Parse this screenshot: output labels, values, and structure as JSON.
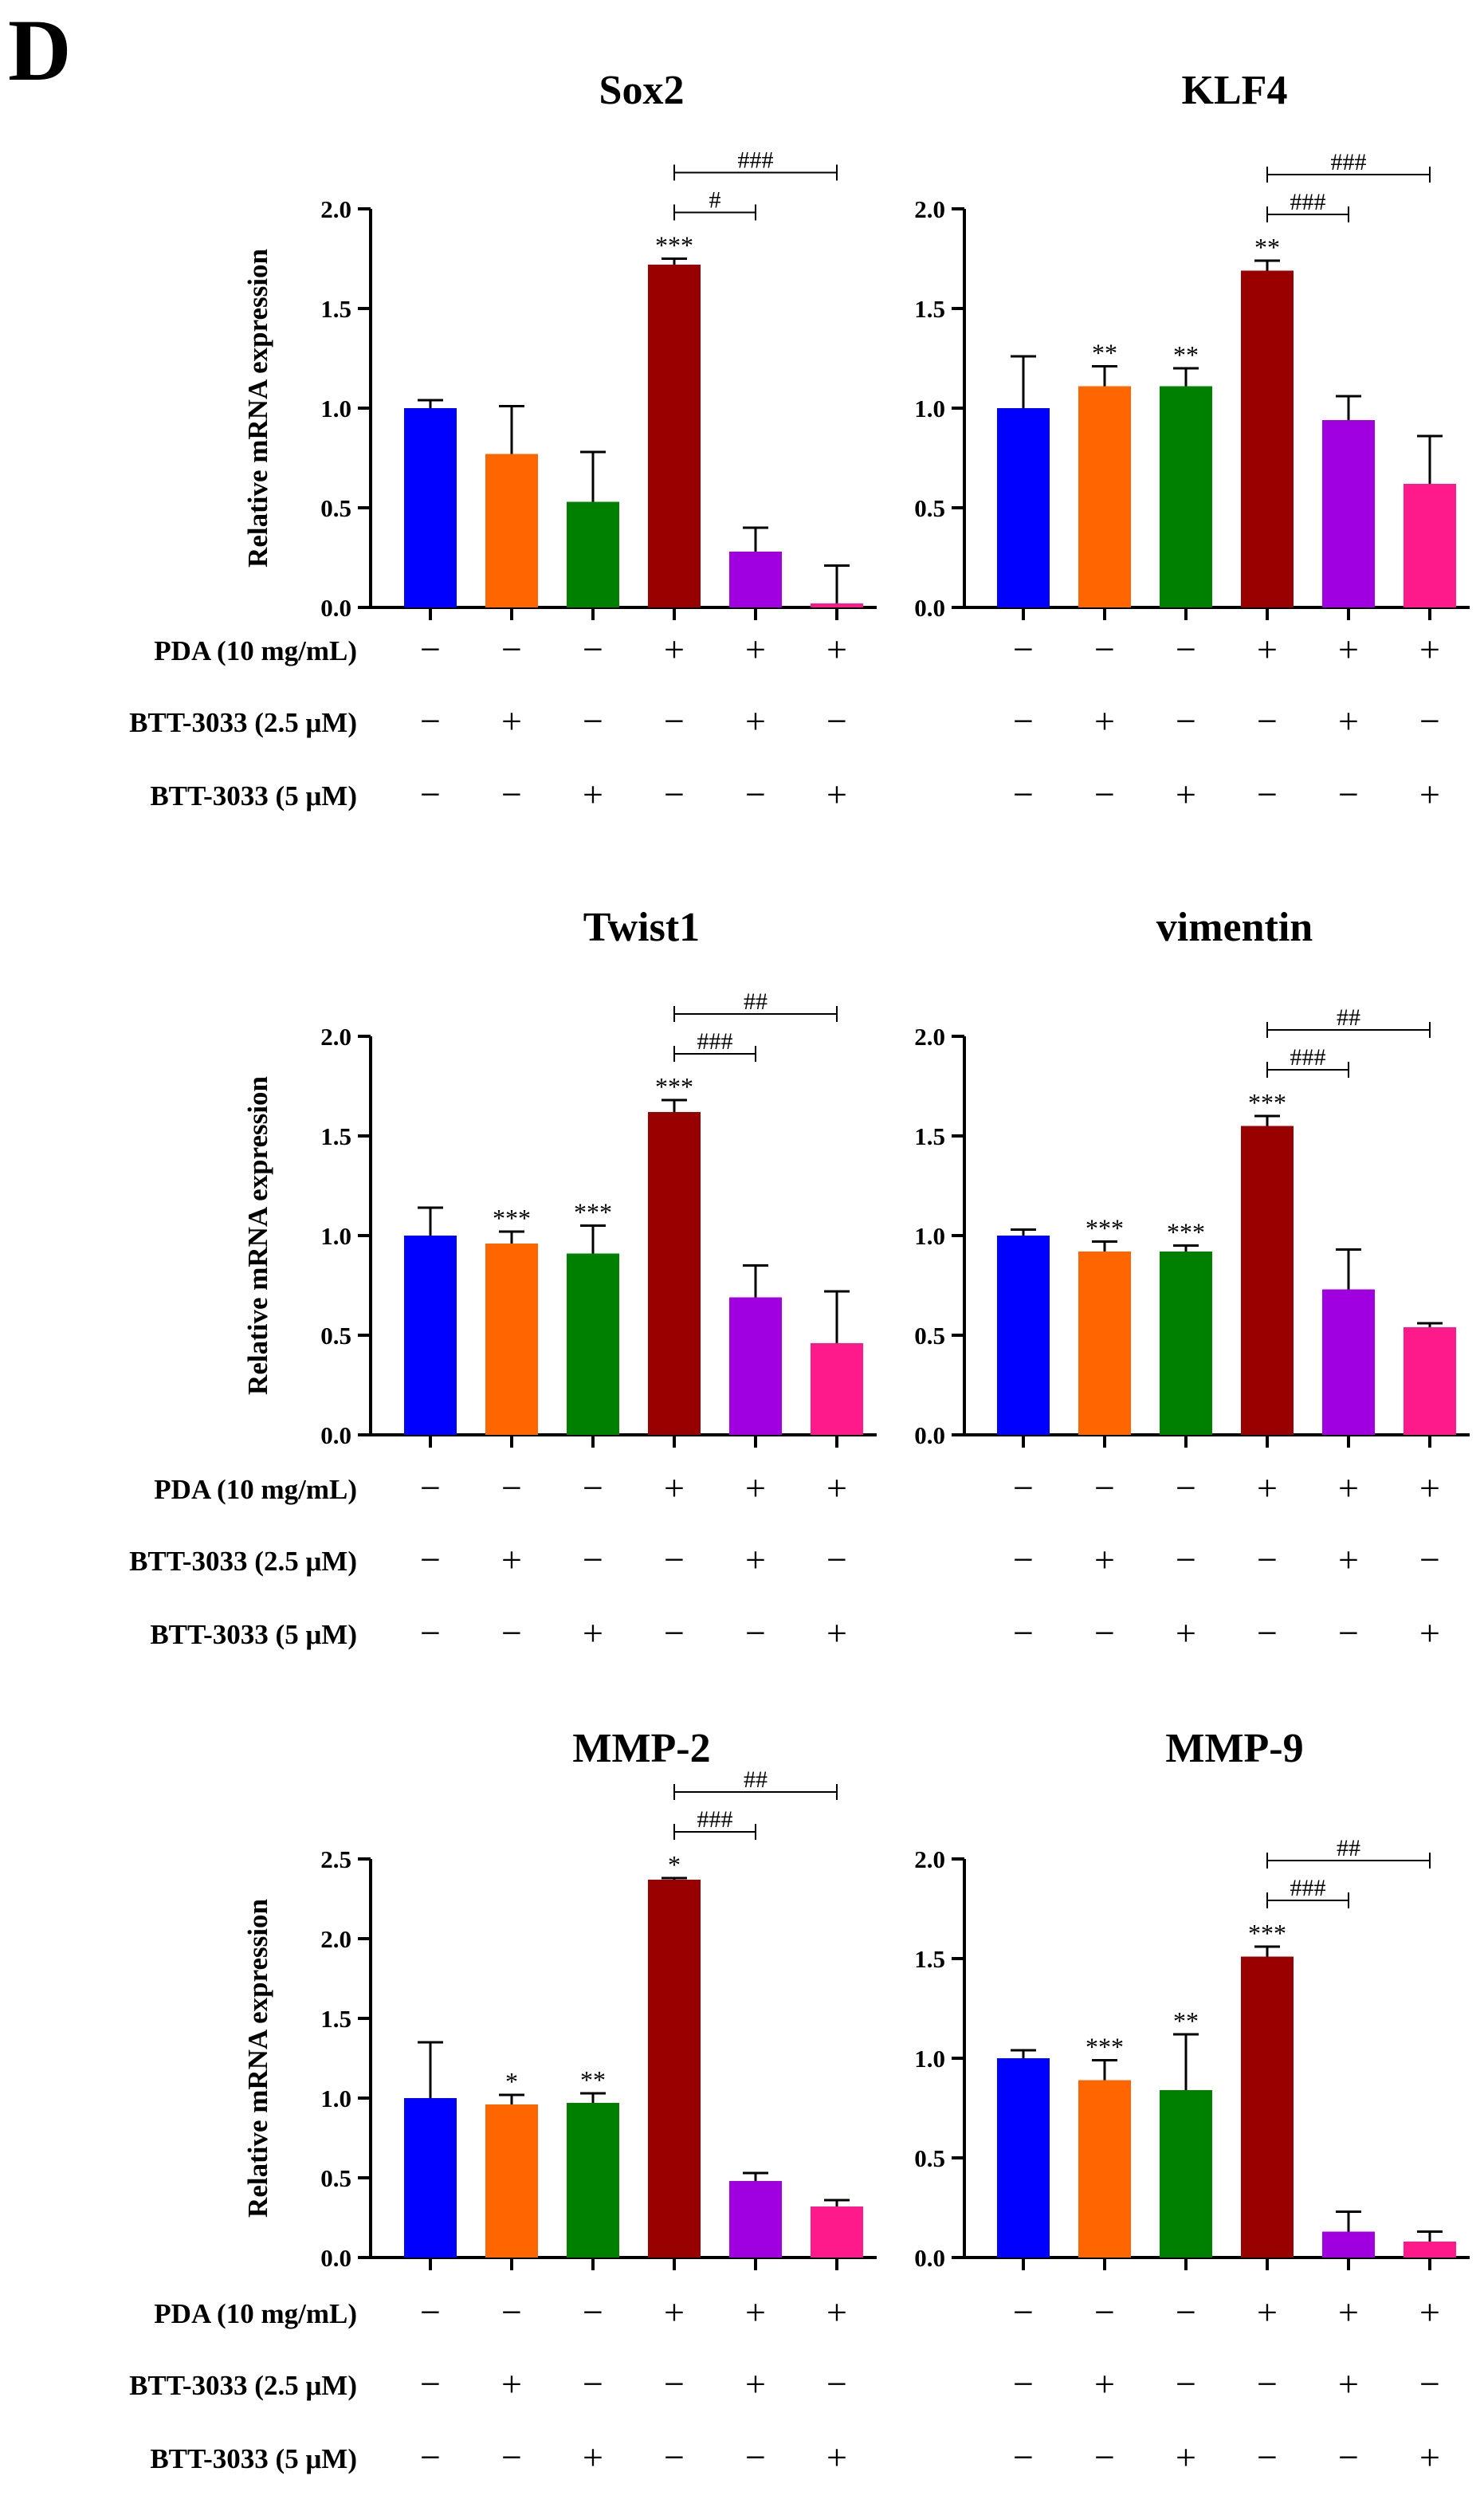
{
  "figure": {
    "panel_label": "D",
    "y_axis_label": "Relative mRNA expression",
    "condition_rows": [
      {
        "label": "PDA (10 mg/mL)",
        "signs": [
          "−",
          "−",
          "−",
          "+",
          "+",
          "+"
        ]
      },
      {
        "label": "BTT-3033 (2.5 μM)",
        "signs": [
          "−",
          "+",
          "−",
          "−",
          "+",
          "−"
        ]
      },
      {
        "label": "BTT-3033 (5 μM)",
        "signs": [
          "−",
          "−",
          "+",
          "−",
          "−",
          "+"
        ]
      }
    ],
    "bar_colors": [
      "#0000ff",
      "#ff6600",
      "#008000",
      "#990000",
      "#a000e0",
      "#ff1a8c"
    ]
  },
  "chart_data": [
    {
      "type": "bar",
      "title": "Sox2",
      "ylabel": "Relative mRNA expression",
      "ylim": [
        0,
        2.0
      ],
      "yticks": [
        "0.0",
        "0.5",
        "1.0",
        "1.5",
        "2.0"
      ],
      "values": [
        1.0,
        0.77,
        0.53,
        1.72,
        0.28,
        0.02
      ],
      "errors": [
        0.04,
        0.24,
        0.25,
        0.03,
        0.12,
        0.19
      ],
      "significance": [
        "",
        "",
        "",
        "***",
        "",
        ""
      ],
      "comparisons": [
        {
          "from": 3,
          "to": 4,
          "label": "#"
        },
        {
          "from": 3,
          "to": 5,
          "label": "###"
        }
      ]
    },
    {
      "type": "bar",
      "title": "KLF4",
      "ylabel": "",
      "ylim": [
        0,
        2.0
      ],
      "yticks": [
        "0.0",
        "0.5",
        "1.0",
        "1.5",
        "2.0"
      ],
      "values": [
        1.0,
        1.11,
        1.11,
        1.69,
        0.94,
        0.62
      ],
      "errors": [
        0.26,
        0.1,
        0.09,
        0.05,
        0.12,
        0.24
      ],
      "significance": [
        "",
        "**",
        "**",
        "**",
        "",
        ""
      ],
      "comparisons": [
        {
          "from": 3,
          "to": 4,
          "label": "###"
        },
        {
          "from": 3,
          "to": 5,
          "label": "###"
        }
      ]
    },
    {
      "type": "bar",
      "title": "Twist1",
      "ylabel": "Relative mRNA expression",
      "ylim": [
        0,
        2.0
      ],
      "yticks": [
        "0.0",
        "0.5",
        "1.0",
        "1.5",
        "2.0"
      ],
      "values": [
        1.0,
        0.96,
        0.91,
        1.62,
        0.69,
        0.46
      ],
      "errors": [
        0.14,
        0.06,
        0.14,
        0.06,
        0.16,
        0.26
      ],
      "significance": [
        "",
        "***",
        "***",
        "***",
        "",
        ""
      ],
      "comparisons": [
        {
          "from": 3,
          "to": 4,
          "label": "###"
        },
        {
          "from": 3,
          "to": 5,
          "label": "##"
        }
      ]
    },
    {
      "type": "bar",
      "title": "vimentin",
      "ylabel": "",
      "ylim": [
        0,
        2.0
      ],
      "yticks": [
        "0.0",
        "0.5",
        "1.0",
        "1.5",
        "2.0"
      ],
      "values": [
        1.0,
        0.92,
        0.92,
        1.55,
        0.73,
        0.54
      ],
      "errors": [
        0.03,
        0.05,
        0.03,
        0.05,
        0.2,
        0.02
      ],
      "significance": [
        "",
        "***",
        "***",
        "***",
        "",
        ""
      ],
      "comparisons": [
        {
          "from": 3,
          "to": 4,
          "label": "###"
        },
        {
          "from": 3,
          "to": 5,
          "label": "##"
        }
      ]
    },
    {
      "type": "bar",
      "title": "MMP-2",
      "ylabel": "Relative mRNA expression",
      "ylim": [
        0,
        2.5
      ],
      "yticks": [
        "0.0",
        "0.5",
        "1.0",
        "1.5",
        "2.0",
        "2.5"
      ],
      "values": [
        1.0,
        0.96,
        0.97,
        2.37,
        0.48,
        0.32
      ],
      "errors": [
        0.35,
        0.06,
        0.06,
        0.01,
        0.05,
        0.04
      ],
      "significance": [
        "",
        "*",
        "**",
        "*",
        "",
        ""
      ],
      "comparisons": [
        {
          "from": 3,
          "to": 4,
          "label": "###"
        },
        {
          "from": 3,
          "to": 5,
          "label": "##"
        }
      ]
    },
    {
      "type": "bar",
      "title": "MMP-9",
      "ylabel": "",
      "ylim": [
        0,
        2.0
      ],
      "yticks": [
        "0.0",
        "0.5",
        "1.0",
        "1.5",
        "2.0"
      ],
      "values": [
        1.0,
        0.89,
        0.84,
        1.51,
        0.13,
        0.08
      ],
      "errors": [
        0.04,
        0.1,
        0.28,
        0.05,
        0.1,
        0.05
      ],
      "significance": [
        "",
        "***",
        "**",
        "***",
        "",
        ""
      ],
      "comparisons": [
        {
          "from": 3,
          "to": 4,
          "label": "###"
        },
        {
          "from": 3,
          "to": 5,
          "label": "##"
        }
      ]
    }
  ]
}
